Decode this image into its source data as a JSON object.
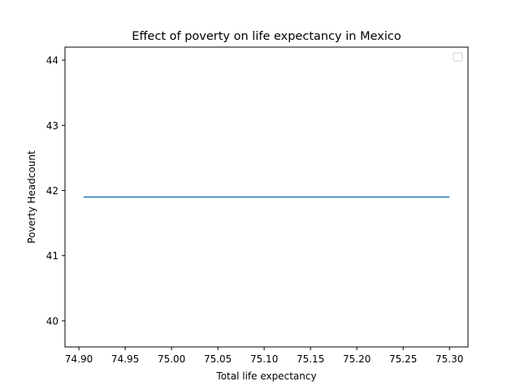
{
  "chart_data": {
    "type": "line",
    "title": "Effect of poverty on life expectancy in Mexico",
    "xlabel": "Total life expectancy",
    "ylabel": "Poverty Headcount",
    "xlim": [
      74.885,
      75.32
    ],
    "ylim": [
      39.6,
      44.2
    ],
    "xticks": [
      74.9,
      74.95,
      75.0,
      75.05,
      75.1,
      75.15,
      75.2,
      75.25,
      75.3
    ],
    "xtick_labels": [
      "74.90",
      "74.95",
      "75.00",
      "75.05",
      "75.10",
      "75.15",
      "75.20",
      "75.25",
      "75.30"
    ],
    "yticks": [
      40,
      41,
      42,
      43,
      44
    ],
    "ytick_labels": [
      "40",
      "41",
      "42",
      "43",
      "44"
    ],
    "grid": false,
    "legend": "upper-right",
    "series": [
      {
        "color": "#1f77b4",
        "x": [
          74.905,
          75.3
        ],
        "y": [
          41.9,
          41.9
        ]
      }
    ]
  }
}
